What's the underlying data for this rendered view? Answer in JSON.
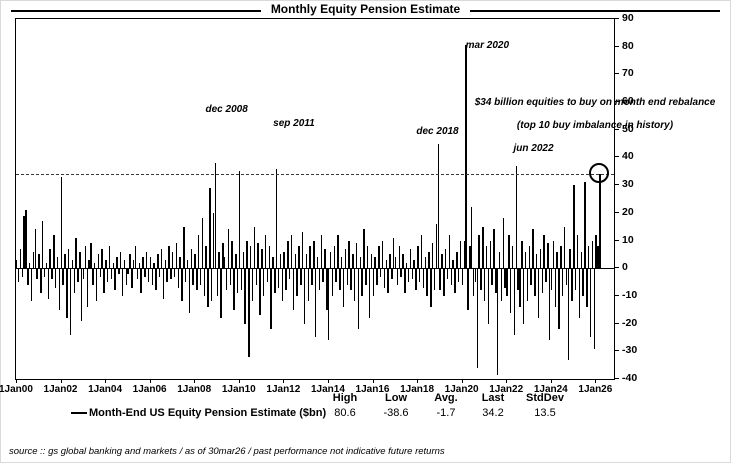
{
  "title": "Monthly Equity Pension Estimate",
  "chart_data": {
    "type": "bar",
    "title": "Monthly Equity Pension Estimate",
    "x_start": "Jan 2000",
    "x_end": "Mar 2026",
    "ylim": [
      -40,
      90
    ],
    "y_tick_step": 10,
    "n_slots": 322,
    "grid": "off",
    "bar_color": "#000000",
    "x_ticks": [
      {
        "index": 0,
        "label": "1Jan00"
      },
      {
        "index": 24,
        "label": "1Jan02"
      },
      {
        "index": 48,
        "label": "1Jan04"
      },
      {
        "index": 72,
        "label": "1Jan06"
      },
      {
        "index": 96,
        "label": "1Jan08"
      },
      {
        "index": 120,
        "label": "1Jan10"
      },
      {
        "index": 144,
        "label": "1Jan12"
      },
      {
        "index": 168,
        "label": "1Jan14"
      },
      {
        "index": 192,
        "label": "1Jan16"
      },
      {
        "index": 216,
        "label": "1Jan18"
      },
      {
        "index": 240,
        "label": "1Jan20"
      },
      {
        "index": 264,
        "label": "1Jan22"
      },
      {
        "index": 288,
        "label": "1Jan24"
      },
      {
        "index": 312,
        "label": "1Jan26"
      }
    ],
    "values": [
      3,
      -5,
      7,
      -3,
      19,
      21,
      -6,
      2,
      -12,
      6,
      14,
      -4,
      5,
      -9,
      17,
      -3,
      2,
      -11,
      7,
      -4,
      12,
      -7,
      4,
      -15,
      33,
      -6,
      5,
      -18,
      7,
      -24,
      3,
      -9,
      11,
      -5,
      6,
      -19,
      -4,
      8,
      -14,
      3,
      9,
      -6,
      2,
      -12,
      5,
      -3,
      7,
      -9,
      3,
      -5,
      8,
      -4,
      2,
      -8,
      4,
      -2,
      6,
      -10,
      3,
      -6,
      -2,
      5,
      -7,
      3,
      8,
      -4,
      2,
      -9,
      4,
      -3,
      6,
      -5,
      4,
      -6,
      2,
      -8,
      5,
      -3,
      7,
      -11,
      3,
      -5,
      8,
      -4,
      6,
      -3,
      9,
      -7,
      4,
      -12,
      15,
      -5,
      3,
      -16,
      7,
      -6,
      5,
      -8,
      12,
      -6,
      18,
      -10,
      8,
      -14,
      29,
      -12,
      20,
      38,
      -10,
      6,
      -18,
      9,
      4,
      -8,
      14,
      -6,
      10,
      -15,
      5,
      -9,
      35,
      -8,
      6,
      -20,
      10,
      -32,
      8,
      -12,
      15,
      -6,
      9,
      -17,
      7,
      -10,
      12,
      -5,
      8,
      -22,
      4,
      -9,
      36,
      -7,
      5,
      -12,
      6,
      -8,
      10,
      -4,
      12,
      -15,
      5,
      -10,
      8,
      -6,
      13,
      -20,
      5,
      -12,
      8,
      -6,
      10,
      -25,
      4,
      -8,
      12,
      -5,
      7,
      -15,
      -26,
      6,
      -10,
      8,
      -5,
      12,
      -8,
      4,
      -14,
      7,
      -6,
      10,
      -8,
      5,
      -12,
      9,
      -22,
      4,
      -10,
      14,
      -6,
      8,
      -18,
      5,
      -10,
      4,
      -6,
      8,
      -3,
      10,
      -7,
      3,
      -9,
      5,
      -4,
      11,
      4,
      -6,
      8,
      -3,
      5,
      -9,
      2,
      -5,
      7,
      -4,
      3,
      -8,
      8,
      -5,
      12,
      -7,
      4,
      -10,
      6,
      -14,
      9,
      -8,
      16,
      45,
      -8,
      5,
      -10,
      7,
      -4,
      12,
      -6,
      3,
      -9,
      6,
      -5,
      10,
      -6,
      10,
      80.6,
      -15,
      8,
      22,
      -10,
      -5,
      -36,
      12,
      -8,
      15,
      -12,
      8,
      -20,
      10,
      -6,
      14,
      -9,
      -38.6,
      6,
      -12,
      18,
      -7,
      -10,
      12,
      -16,
      8,
      -24,
      37,
      -8,
      -14,
      10,
      -20,
      6,
      -12,
      8,
      -6,
      14,
      -10,
      5,
      -18,
      7,
      -9,
      12,
      -5,
      9,
      -26,
      -8,
      10,
      -14,
      6,
      -22,
      8,
      -10,
      15,
      -6,
      -33,
      7,
      -12,
      30,
      -8,
      12,
      -18,
      6,
      -10,
      31,
      -14,
      8,
      -25,
      10,
      -29,
      12,
      8,
      34.2
    ],
    "reference_line": 34.2,
    "circle_marker": {
      "index": 314,
      "value": 34.2
    },
    "annotations": [
      {
        "label": "dec 2008",
        "index": 107,
        "y": 55,
        "dx": 12
      },
      {
        "label": "sep 2011",
        "index": 140,
        "y": 50,
        "dx": 18
      },
      {
        "label": "dec 2018",
        "index": 227,
        "y": 47,
        "dx": 0
      },
      {
        "label": "mar 2020",
        "index": 242,
        "y": 78,
        "dx": 22
      },
      {
        "label": "jun 2022",
        "index": 269,
        "y": 41,
        "dx": 18
      }
    ],
    "note_lines": [
      "$34 billion equities to buy on month end rebalance",
      "(top 10 buy imbalance in history)"
    ]
  },
  "stats": {
    "legend": "Month-End US Equity Pension Estimate ($bn)",
    "headers": [
      "High",
      "Low",
      "Avg.",
      "Last",
      "StdDev"
    ],
    "values": [
      "80.6",
      "-38.6",
      "-1.7",
      "34.2",
      "13.5"
    ]
  },
  "source": "source :: gs global banking and markets / as of 30mar26 / past performance not indicative future returns"
}
